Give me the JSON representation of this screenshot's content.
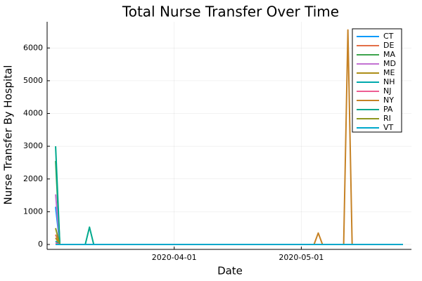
{
  "chart_data": {
    "type": "line",
    "title": "Total Nurse Transfer Over Time",
    "xlabel": "Date",
    "ylabel": "Nurse Transfer By Hospital",
    "x_type": "date",
    "xlim": [
      "2020-03-02",
      "2020-05-27"
    ],
    "ylim": [
      -150,
      6800
    ],
    "x_ticks": [
      "2020-04-01",
      "2020-05-01"
    ],
    "y_ticks": [
      0,
      1000,
      2000,
      3000,
      4000,
      5000,
      6000
    ],
    "grid": true,
    "legend_position": "top-right",
    "series": [
      {
        "name": "CT",
        "color": "#009AFA",
        "points": [
          [
            "2020-03-04",
            1150
          ],
          [
            "2020-03-05",
            0
          ],
          [
            "2020-05-25",
            0
          ]
        ]
      },
      {
        "name": "DE",
        "color": "#E36F47",
        "points": [
          [
            "2020-03-04",
            300
          ],
          [
            "2020-03-05",
            0
          ],
          [
            "2020-05-25",
            0
          ]
        ]
      },
      {
        "name": "MA",
        "color": "#3EA44E",
        "points": [
          [
            "2020-03-04",
            2550
          ],
          [
            "2020-03-05",
            0
          ],
          [
            "2020-05-25",
            0
          ]
        ]
      },
      {
        "name": "MD",
        "color": "#C371D2",
        "points": [
          [
            "2020-03-04",
            1530
          ],
          [
            "2020-03-05",
            0
          ],
          [
            "2020-05-25",
            0
          ]
        ]
      },
      {
        "name": "ME",
        "color": "#AC8E18",
        "points": [
          [
            "2020-03-04",
            200
          ],
          [
            "2020-03-05",
            0
          ],
          [
            "2020-05-25",
            0
          ]
        ]
      },
      {
        "name": "NH",
        "color": "#00A9AD",
        "points": [
          [
            "2020-03-04",
            100
          ],
          [
            "2020-03-05",
            0
          ],
          [
            "2020-05-25",
            0
          ]
        ]
      },
      {
        "name": "NJ",
        "color": "#ED5E93",
        "points": [
          [
            "2020-03-04",
            50
          ],
          [
            "2020-03-05",
            0
          ],
          [
            "2020-05-25",
            0
          ]
        ]
      },
      {
        "name": "NY",
        "color": "#C68225",
        "points": [
          [
            "2020-03-04",
            0
          ],
          [
            "2020-05-04",
            0
          ],
          [
            "2020-05-05",
            350
          ],
          [
            "2020-05-06",
            0
          ],
          [
            "2020-05-11",
            0
          ],
          [
            "2020-05-12",
            6550
          ],
          [
            "2020-05-13",
            0
          ],
          [
            "2020-05-25",
            0
          ]
        ]
      },
      {
        "name": "PA",
        "color": "#00A98D",
        "points": [
          [
            "2020-03-04",
            3000
          ],
          [
            "2020-03-05",
            0
          ],
          [
            "2020-03-11",
            0
          ],
          [
            "2020-03-12",
            530
          ],
          [
            "2020-03-13",
            0
          ],
          [
            "2020-05-25",
            0
          ]
        ]
      },
      {
        "name": "RI",
        "color": "#8E971E",
        "points": [
          [
            "2020-03-04",
            500
          ],
          [
            "2020-03-05",
            0
          ],
          [
            "2020-05-25",
            0
          ]
        ]
      },
      {
        "name": "VT",
        "color": "#00A8CB",
        "points": [
          [
            "2020-03-04",
            0
          ],
          [
            "2020-05-25",
            0
          ]
        ]
      }
    ]
  }
}
